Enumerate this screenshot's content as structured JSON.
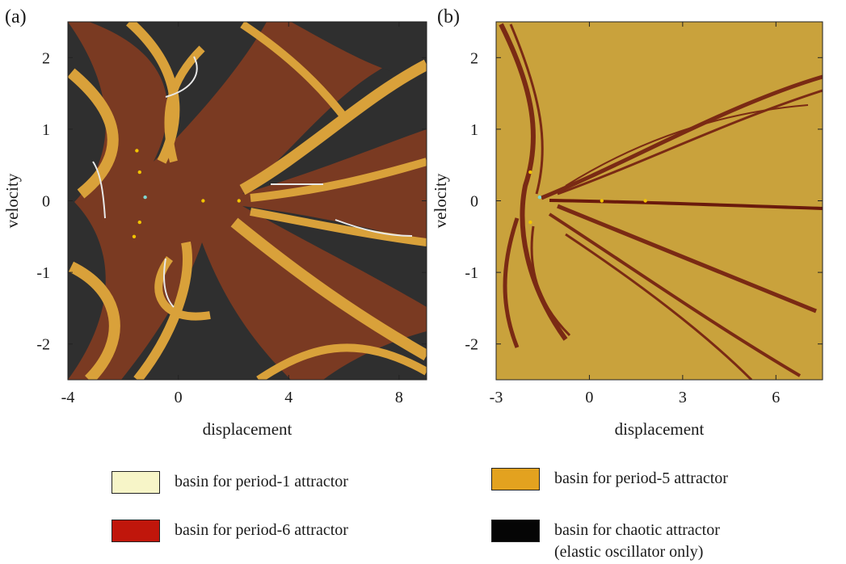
{
  "panels": [
    {
      "tag": "(a)",
      "xlabel": "displacement",
      "ylabel": "velocity",
      "xlim": [
        -4,
        9
      ],
      "ylim": [
        -2.5,
        2.5
      ],
      "xticks": [
        -4,
        0,
        4,
        8
      ],
      "yticks": [
        -2,
        -1,
        0,
        1,
        2
      ],
      "background": "#7a3a22"
    },
    {
      "tag": "(b)",
      "xlabel": "displacement",
      "ylabel": "velocity",
      "xlim": [
        -3,
        7.5
      ],
      "ylim": [
        -2.5,
        2.5
      ],
      "xticks": [
        -3,
        0,
        3,
        6
      ],
      "yticks": [
        -2,
        -1,
        0,
        1,
        2
      ],
      "background": "#c9a23c"
    }
  ],
  "legend": [
    {
      "label": "basin for period-1 attractor",
      "color": "#f7f5c8"
    },
    {
      "label": "basin for period-5 attractor",
      "color": "#e3a21f"
    },
    {
      "label": "basin for period-6 attractor",
      "color": "#c0160b"
    },
    {
      "label": "basin for chaotic attractor\n(elastic oscillator only)",
      "color": "#050505"
    }
  ],
  "chart_data": [
    {
      "type": "heatmap",
      "title": "",
      "xlabel": "displacement",
      "ylabel": "velocity",
      "xlim": [
        -4,
        9
      ],
      "ylim": [
        -2.5,
        2.5
      ],
      "grid": false,
      "categories": [
        "period-1 attractor",
        "period-5 attractor",
        "period-6 attractor",
        "chaotic attractor"
      ],
      "description_values": {
        "dominant_basins": [
          "period-5 attractor",
          "period-6 attractor",
          "chaotic attractor"
        ]
      },
      "attractor_points": {
        "period-5": [
          [
            0.9,
            0.0
          ],
          [
            2.2,
            0.0
          ],
          [
            -1.5,
            0.7
          ],
          [
            -1.4,
            0.4
          ],
          [
            -1.4,
            -0.3
          ],
          [
            -1.6,
            -0.5
          ]
        ],
        "period-1": [
          [
            -1.2,
            0.05
          ]
        ]
      }
    },
    {
      "type": "heatmap",
      "title": "",
      "xlabel": "displacement",
      "ylabel": "velocity",
      "xlim": [
        -3,
        7.5
      ],
      "ylim": [
        -2.5,
        2.5
      ],
      "grid": false,
      "categories": [
        "period-1 attractor",
        "period-5 attractor",
        "period-6 attractor"
      ],
      "description_values": {
        "dominant_basins": [
          "period-5 attractor",
          "period-6 attractor"
        ]
      },
      "attractor_points": {
        "period-5": [
          [
            0.4,
            0.0
          ],
          [
            1.8,
            0.0
          ],
          [
            -1.9,
            0.4
          ],
          [
            -1.9,
            -0.3
          ]
        ],
        "period-1": [
          [
            -1.6,
            0.05
          ]
        ]
      }
    }
  ]
}
